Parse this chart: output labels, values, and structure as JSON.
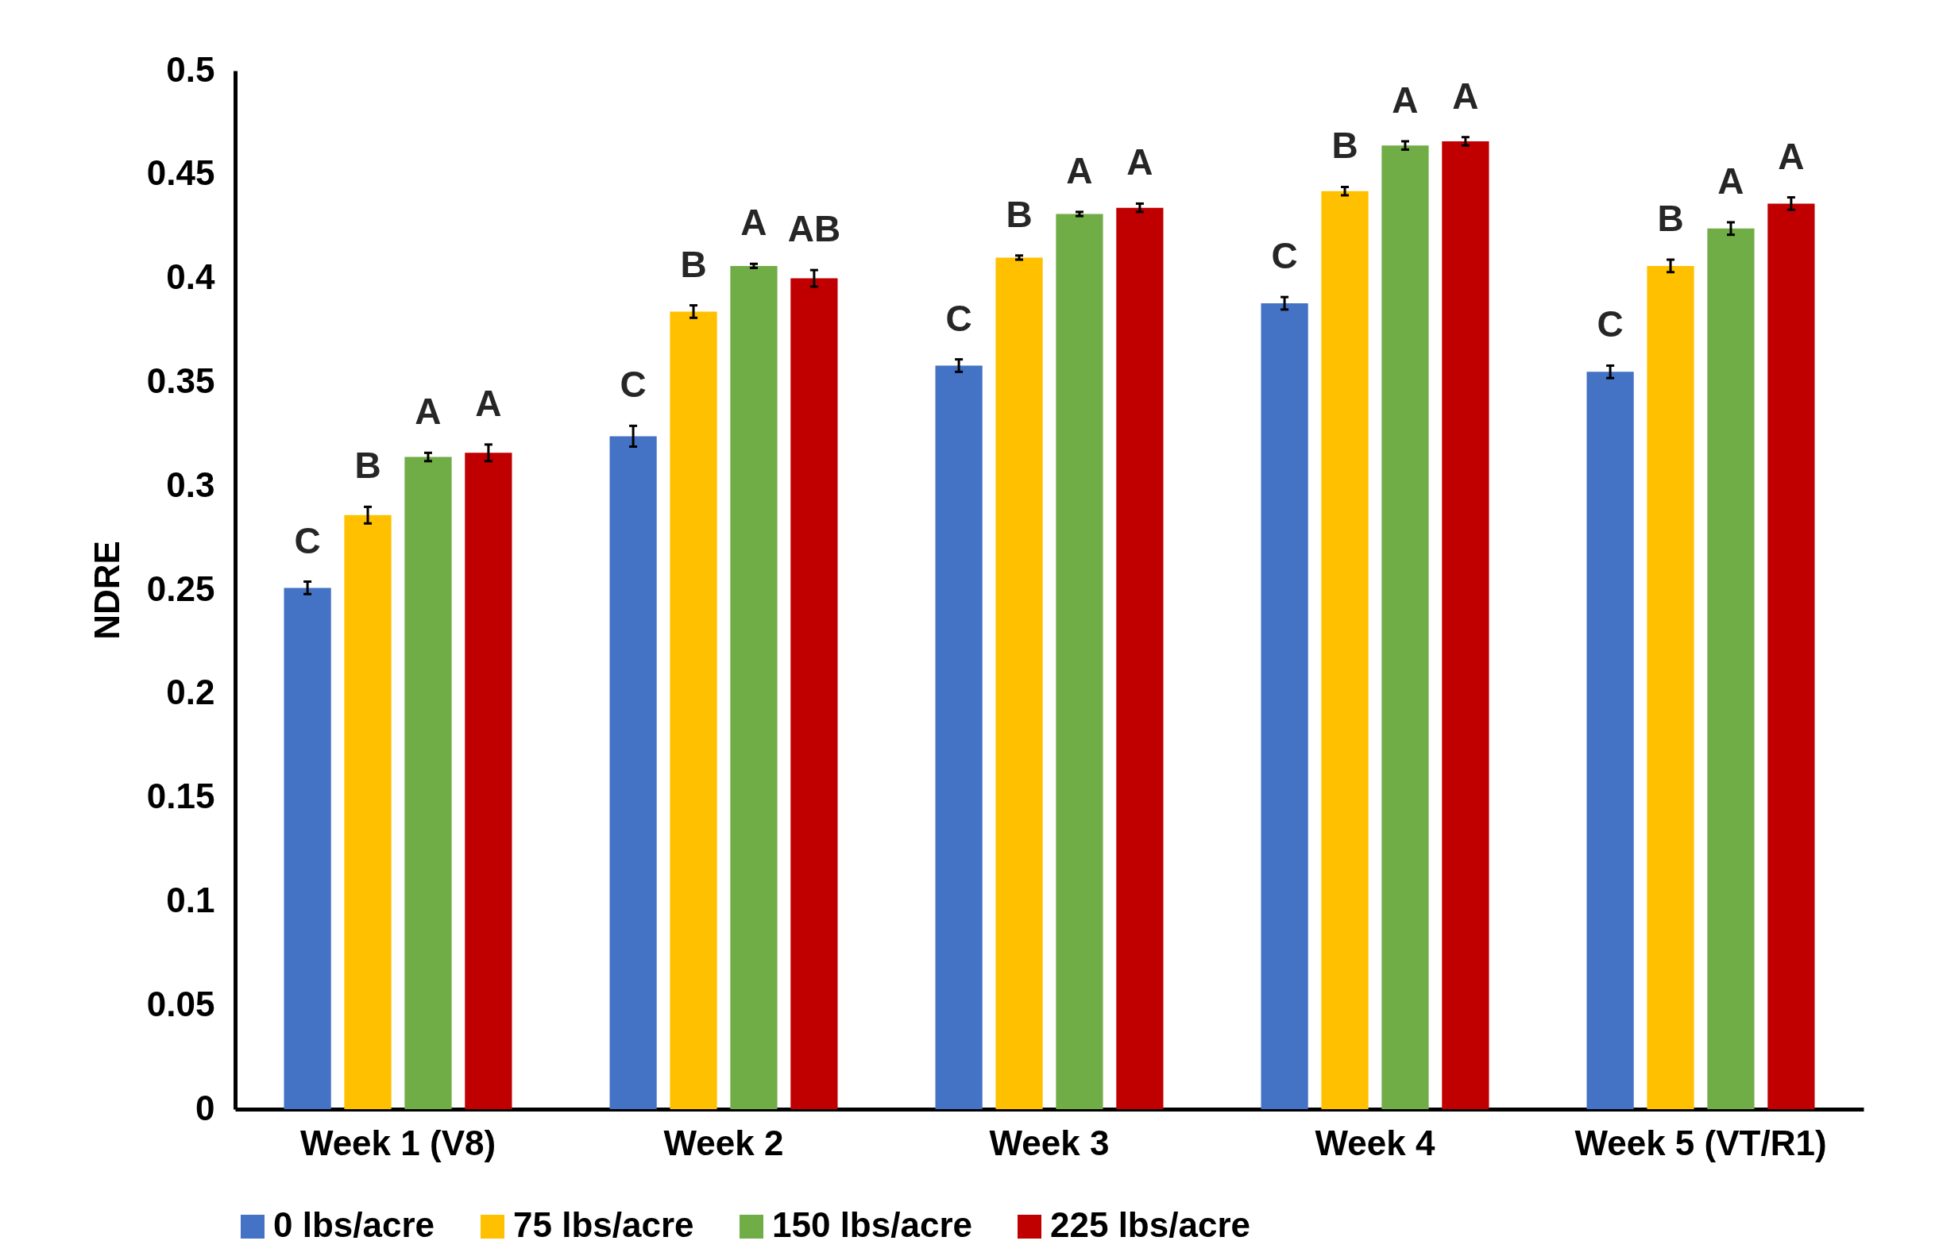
{
  "chart_data": {
    "type": "bar",
    "ylabel": "NDRE",
    "categories": [
      "Week 1 (V8)",
      "Week 2",
      "Week 3",
      "Week 4",
      "Week 5 (VT/R1)"
    ],
    "ylim": [
      0,
      0.5
    ],
    "yticks": [
      0,
      0.05,
      0.1,
      0.15,
      0.2,
      0.25,
      0.3,
      0.35,
      0.4,
      0.45,
      0.5
    ],
    "legend": "bottom",
    "series": [
      {
        "name": "0 lbs/acre",
        "color": "#4472c4",
        "values": [
          0.251,
          0.324,
          0.358,
          0.388,
          0.355
        ],
        "errors": [
          0.003,
          0.005,
          0.003,
          0.003,
          0.003
        ],
        "value_labels": [
          "C",
          "C",
          "C",
          "C",
          "C"
        ]
      },
      {
        "name": "75 lbs/acre",
        "color": "#ffc000",
        "values": [
          0.286,
          0.384,
          0.41,
          0.442,
          0.406
        ],
        "errors": [
          0.004,
          0.003,
          0.001,
          0.002,
          0.003
        ],
        "value_labels": [
          "B",
          "B",
          "B",
          "B",
          "B"
        ]
      },
      {
        "name": "150 lbs/acre",
        "color": "#70ad47",
        "values": [
          0.314,
          0.406,
          0.431,
          0.464,
          0.424
        ],
        "errors": [
          0.002,
          0.001,
          0.001,
          0.002,
          0.003
        ],
        "value_labels": [
          "A",
          "A",
          "A",
          "A",
          "A"
        ]
      },
      {
        "name": "225 lbs/acre",
        "color": "#c00000",
        "values": [
          0.316,
          0.4,
          0.434,
          0.466,
          0.436
        ],
        "errors": [
          0.004,
          0.004,
          0.002,
          0.002,
          0.003
        ],
        "value_labels": [
          "A",
          "AB",
          "A",
          "A",
          "A"
        ]
      }
    ]
  }
}
